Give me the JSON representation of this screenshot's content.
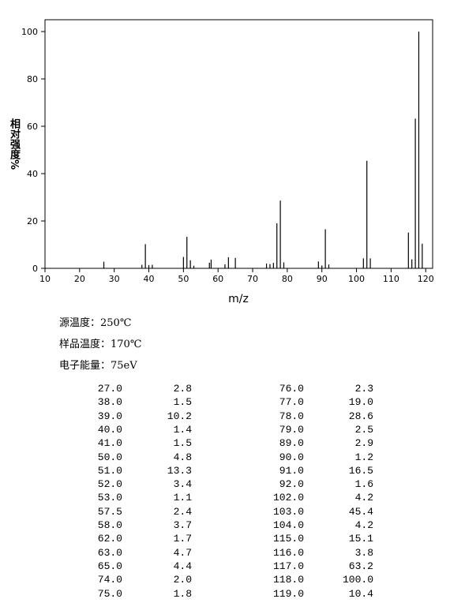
{
  "chart_data": {
    "type": "bar",
    "xlabel": "m/z",
    "ylabel": "相对强度%",
    "x": [
      27,
      38,
      39,
      40,
      41,
      50,
      51,
      52,
      53,
      57.5,
      58,
      62,
      63,
      65,
      74,
      75,
      76,
      77,
      78,
      79,
      89,
      90,
      91,
      92,
      102,
      103,
      104,
      115,
      116,
      117,
      118,
      119
    ],
    "values": [
      2.8,
      1.5,
      10.2,
      1.4,
      1.5,
      4.8,
      13.3,
      3.4,
      1.1,
      2.4,
      3.7,
      1.7,
      4.7,
      4.4,
      2.0,
      1.8,
      2.3,
      19.0,
      28.6,
      2.5,
      2.9,
      1.2,
      16.5,
      1.6,
      4.2,
      45.4,
      4.2,
      15.1,
      3.8,
      63.2,
      100.0,
      10.4
    ],
    "color": "#000000",
    "xlim": [
      10,
      122
    ],
    "xticks": [
      10,
      20,
      30,
      40,
      50,
      60,
      70,
      80,
      90,
      100,
      110,
      120
    ],
    "ylim": [
      0,
      105
    ],
    "yticks": [
      0,
      20,
      40,
      60,
      80,
      100
    ]
  },
  "info": [
    "源温度：250℃",
    "样品温度：170℃",
    "电子能量：75eV"
  ],
  "table": {
    "rows": [
      [
        "27.0",
        "2.8",
        "76.0",
        "2.3"
      ],
      [
        "38.0",
        "1.5",
        "77.0",
        "19.0"
      ],
      [
        "39.0",
        "10.2",
        "78.0",
        "28.6"
      ],
      [
        "40.0",
        "1.4",
        "79.0",
        "2.5"
      ],
      [
        "41.0",
        "1.5",
        "89.0",
        "2.9"
      ],
      [
        "50.0",
        "4.8",
        "90.0",
        "1.2"
      ],
      [
        "51.0",
        "13.3",
        "91.0",
        "16.5"
      ],
      [
        "52.0",
        "3.4",
        "92.0",
        "1.6"
      ],
      [
        "53.0",
        "1.1",
        "102.0",
        "4.2"
      ],
      [
        "57.5",
        "2.4",
        "103.0",
        "45.4"
      ],
      [
        "58.0",
        "3.7",
        "104.0",
        "4.2"
      ],
      [
        "62.0",
        "1.7",
        "115.0",
        "15.1"
      ],
      [
        "63.0",
        "4.7",
        "116.0",
        "3.8"
      ],
      [
        "65.0",
        "4.4",
        "117.0",
        "63.2"
      ],
      [
        "74.0",
        "2.0",
        "118.0",
        "100.0"
      ],
      [
        "75.0",
        "1.8",
        "119.0",
        "10.4"
      ]
    ]
  }
}
